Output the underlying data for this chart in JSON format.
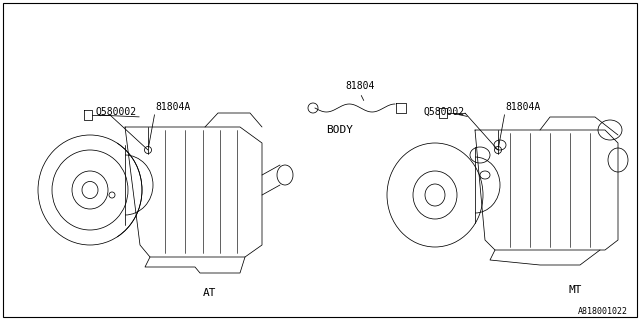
{
  "bg_color": "#ffffff",
  "line_color": "#000000",
  "text_color": "#000000",
  "diagram_id": "A818001022",
  "font_size_label": 8,
  "font_size_part": 7,
  "font_size_id": 6,
  "border_lw": 0.8,
  "draw_lw": 0.55,
  "at_label": "AT",
  "mt_label": "MT",
  "body_label": "BODY",
  "q580002": "Q580002",
  "part_81804A": "81804A",
  "part_81804": "81804"
}
